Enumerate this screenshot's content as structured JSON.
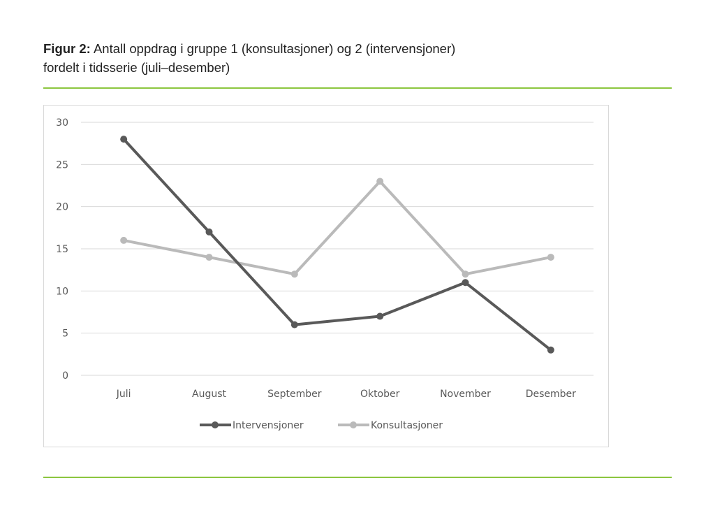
{
  "caption": {
    "label": "Figur 2:",
    "text": "Antall oppdrag i gruppe 1 (konsultasjoner) og 2 (intervensjoner)",
    "line2": "fordelt i tidsserie (juli–desember)"
  },
  "colors": {
    "rule": "#8cc63f",
    "intervensjoner": "#595959",
    "konsultasjoner": "#bababa",
    "grid": "#d9d9d9"
  },
  "chart_data": {
    "type": "line",
    "categories": [
      "Juli",
      "August",
      "September",
      "Oktober",
      "November",
      "Desember"
    ],
    "series": [
      {
        "name": "Intervensjoner",
        "values": [
          28,
          17,
          6,
          7,
          11,
          3
        ]
      },
      {
        "name": "Konsultasjoner",
        "values": [
          16,
          14,
          12,
          23,
          12,
          14
        ]
      }
    ],
    "ylim": [
      0,
      30
    ],
    "yticks": [
      0,
      5,
      10,
      15,
      20,
      25,
      30
    ],
    "grid": true,
    "legend": "bottom",
    "markers": "circle"
  }
}
